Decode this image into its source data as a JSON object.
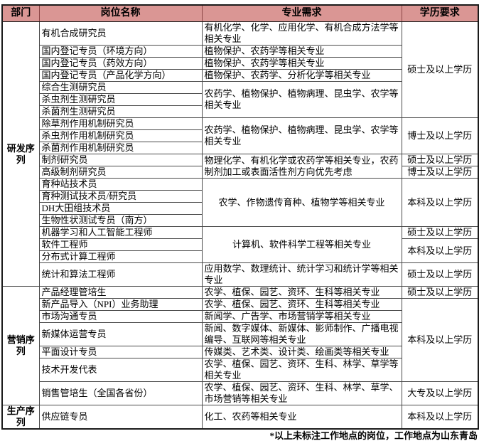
{
  "colors": {
    "header_bg": "#DA9694",
    "grid_border": "#4a4a4a",
    "outer_border": "#1a1a1a"
  },
  "table": {
    "columns": [
      "部门",
      "岗位名称",
      "专业需求",
      "学历要求"
    ],
    "departments": {
      "rd": "研发序列",
      "marketing": "营销序列",
      "production": "生产序列"
    },
    "edu_levels": {
      "master": "硕士及以上学历",
      "phd": "博士及以上学历",
      "bachelor": "本科及以上学历",
      "college": "大专及以上学历"
    },
    "rows": [
      {
        "position": "有机合成研究员",
        "major": "有机化学、化学、应用化学、有机合成方法学等相关专业",
        "edu": "硕士及以上学历"
      },
      {
        "position": "国内登记专员（环境方向）",
        "major": "植物保护、农药学等相关专业"
      },
      {
        "position": "国内登记专员（药效方向）",
        "major": "植物保护、农药学等相关专业"
      },
      {
        "position": "国内登记专员（产品化学方向）",
        "major": "植物保护、农药学、分析化学等相关专业"
      },
      {
        "position": "综合生测研究员",
        "major": "农药学、植物保护、植物病理、昆虫学、农学等相关专业"
      },
      {
        "position": "杀虫剂生测研究员"
      },
      {
        "position": "杀菌剂生测研究员"
      },
      {
        "position": "除草剂作用机制研究员",
        "major": "农药学、植物保护、植物病理、昆虫学、农学等相关专业",
        "edu": "博士及以上学历"
      },
      {
        "position": "杀虫剂作用机制研究员"
      },
      {
        "position": "杀菌剂作用机制研究员"
      },
      {
        "position": "制剂研究员",
        "major": "物理化学、有机化学或农药学等相关专业，农药制剂加工或表面活性剂方向优先考虑",
        "edu": "硕士及以上学历"
      },
      {
        "position": "高级制剂研究员",
        "edu": "博士及以上学历"
      },
      {
        "position": "育种站技术员",
        "major": "农学、作物遗传育种、植物学等相关专业",
        "edu": "本科及以上学历"
      },
      {
        "position": "育种测试技术员/研究员"
      },
      {
        "position": "DH大田组技术员"
      },
      {
        "position": "生物性状测试专员（南方）"
      },
      {
        "position": "机器学习和人工智能工程师",
        "major": "计算机、软件科学工程等相关专业",
        "edu": "硕士及以上学历"
      },
      {
        "position": "软件工程师",
        "edu": "本科及以上学历"
      },
      {
        "position": "分布式计算工程师"
      },
      {
        "position": "统计和算法工程师",
        "major": "应用数学、数理统计、统计学习和统计学等相关专业",
        "edu": "硕士及以上学历"
      },
      {
        "position": "产品经理管培生",
        "major": "农学、植保、园艺、资环、生科等相关专业",
        "edu": "硕士及以上学历"
      },
      {
        "position": "新产品导入（NPI）业务助理",
        "major": "农学、植保、园艺、资环、生科等相关专业",
        "edu": "本科及以上学历"
      },
      {
        "position": "市场沟通专员",
        "major": "新闻学、广告学、市场营销学等相关专业"
      },
      {
        "position": "新媒体运营专员",
        "major": "新闻、数字媒体、新媒体、影师制作、广播电视编导、互联网等相关专业"
      },
      {
        "position": "平面设计专员",
        "major": "传媒类、艺术类、设计类、绘画类等相关专业"
      },
      {
        "position": "技术开发代表",
        "major": "农学、植保、园艺、资环、生科、林学、草学等相关专业"
      },
      {
        "position": "销售管培生（全国各省份）",
        "major": "农学、植保、园艺、资环、生科、林学、草学、市场营销等相关专业",
        "edu": "大专及以上学历"
      },
      {
        "position": "供应链专员",
        "major": "化工、农药等相关专业",
        "edu": "本科及以上学历"
      }
    ]
  },
  "footnote": "*以上未标注工作地点的岗位，工作地点为山东青岛"
}
